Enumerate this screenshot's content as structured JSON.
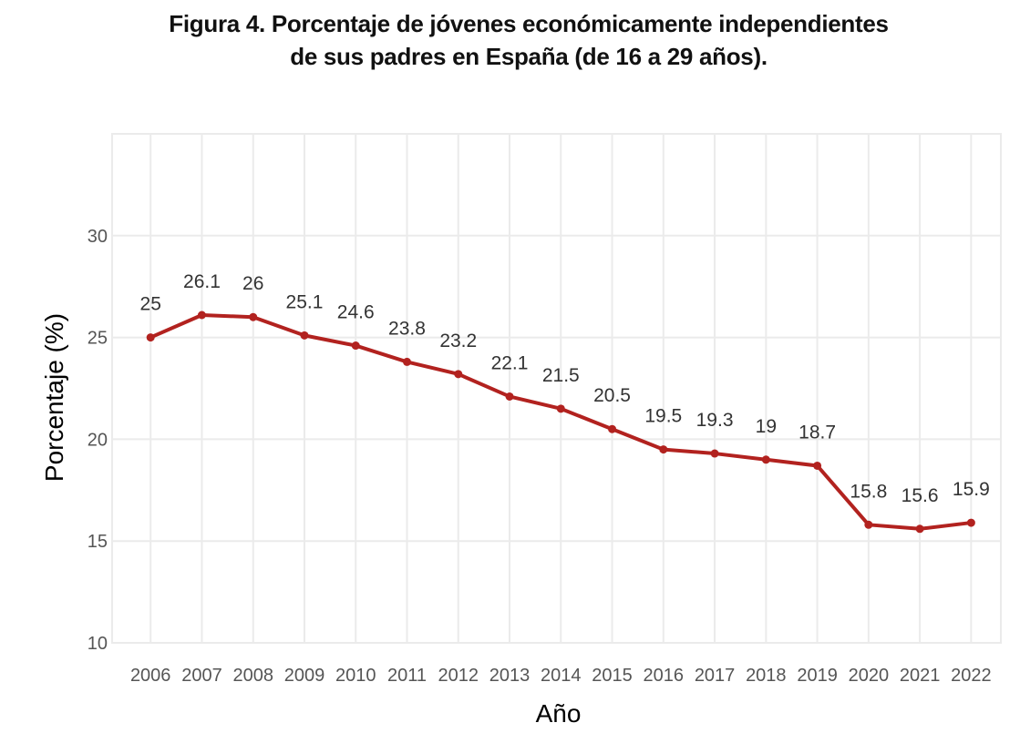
{
  "chart_data": {
    "type": "line",
    "title_lines": [
      "Figura 4. Porcentaje de jóvenes económicamente independientes",
      "de sus padres en España (de 16 a 29 años)."
    ],
    "xlabel": "Año",
    "ylabel": "Porcentaje (%)",
    "x": [
      2006,
      2007,
      2008,
      2009,
      2010,
      2011,
      2012,
      2013,
      2014,
      2015,
      2016,
      2017,
      2018,
      2019,
      2020,
      2021,
      2022
    ],
    "x_tick_labels": [
      "2006",
      "2007",
      "2008",
      "2009",
      "2010",
      "2011",
      "2012",
      "2013",
      "2014",
      "2015",
      "2016",
      "2017",
      "2018",
      "2019",
      "2020",
      "2021",
      "2022"
    ],
    "series": [
      {
        "name": "Porcentaje de jóvenes económicamente independientes",
        "values": [
          25,
          26.1,
          26,
          25.1,
          24.6,
          23.8,
          23.2,
          22.1,
          21.5,
          20.5,
          19.5,
          19.3,
          19,
          18.7,
          15.8,
          15.6,
          15.9
        ],
        "data_labels": [
          "25",
          "26.1",
          "26",
          "25.1",
          "24.6",
          "23.8",
          "23.2",
          "22.1",
          "21.5",
          "20.5",
          "19.5",
          "19.3",
          "19",
          "18.7",
          "15.8",
          "15.6",
          "15.9"
        ],
        "color": "#b2221f"
      }
    ],
    "y_ticks": [
      10,
      15,
      20,
      25,
      30
    ],
    "y_tick_labels": [
      "10",
      "15",
      "20",
      "25",
      "30"
    ],
    "ylim": [
      10,
      35
    ],
    "xlim": [
      2005.25,
      2022.58
    ],
    "grid": true,
    "legend": "none",
    "colors": {
      "line": "#b2221f",
      "grid": "#ebebeb",
      "tick_text": "#555555",
      "data_label_text": "#333333"
    }
  }
}
